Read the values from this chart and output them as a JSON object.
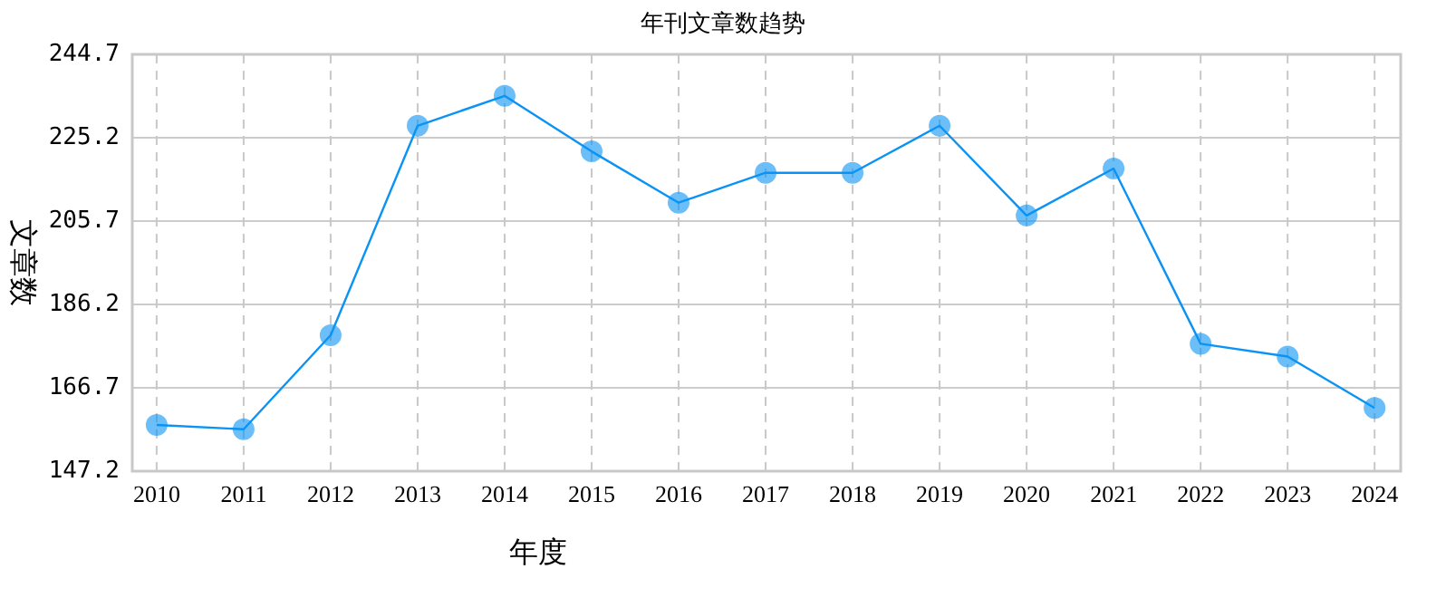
{
  "chart_data": {
    "type": "line",
    "title": "年刊文章数趋势",
    "xlabel": "年度",
    "ylabel": "文章数",
    "categories": [
      "2010",
      "2011",
      "2012",
      "2013",
      "2014",
      "2015",
      "2016",
      "2017",
      "2018",
      "2019",
      "2020",
      "2021",
      "2022",
      "2023",
      "2024"
    ],
    "series": [
      {
        "color": "#0a93f5",
        "values": [
          158,
          157,
          179,
          228,
          235,
          222,
          210,
          217,
          217,
          228,
          207,
          218,
          177,
          174,
          162
        ]
      }
    ],
    "ylim": [
      147.2,
      244.7
    ],
    "yticks": [
      147.2,
      166.7,
      186.2,
      205.7,
      225.2,
      244.7
    ],
    "grid": true,
    "marker": "circle",
    "line_style": "solid"
  }
}
